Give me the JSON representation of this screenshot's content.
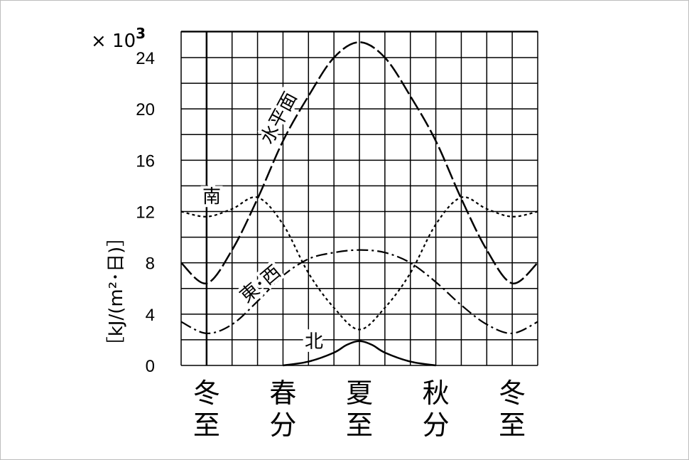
{
  "chart_data": {
    "type": "line",
    "multiplier_label": "× 10",
    "multiplier_exp": "3",
    "ylabel": "［kJ/(m²･日)］",
    "ylim": [
      0,
      24
    ],
    "yticks": [
      0,
      4,
      8,
      12,
      16,
      20,
      24
    ],
    "categories": [
      {
        "line1": "冬",
        "line2": "至",
        "x": 0
      },
      {
        "line1": "春",
        "line2": "分",
        "x": 3
      },
      {
        "line1": "夏",
        "line2": "至",
        "x": 6
      },
      {
        "line1": "秋",
        "line2": "分",
        "x": 9
      },
      {
        "line1": "冬",
        "line2": "至",
        "x": 12
      }
    ],
    "xlim": [
      -1,
      13
    ],
    "series": [
      {
        "name": "水平面",
        "x": [
          -1,
          0,
          1,
          2,
          3,
          4,
          5,
          6,
          7,
          8,
          9,
          10,
          11,
          12,
          13
        ],
        "values": [
          8,
          6.4,
          9,
          13,
          17.5,
          21,
          24,
          25.2,
          24,
          21,
          17.5,
          13,
          9,
          6.4,
          8
        ]
      },
      {
        "name": "南",
        "x": [
          -1,
          0,
          1,
          2,
          3,
          4,
          5,
          6,
          7,
          8,
          9,
          10,
          11,
          12,
          13
        ],
        "values": [
          12,
          11.6,
          12.2,
          13.1,
          11,
          7.2,
          4.5,
          2.8,
          4.5,
          7.2,
          11,
          13.1,
          12.2,
          11.6,
          12
        ]
      },
      {
        "name": "東･西",
        "x": [
          -1,
          0,
          1,
          2,
          3,
          4,
          5,
          6,
          7,
          8,
          9,
          10,
          11,
          12,
          13
        ],
        "values": [
          3.4,
          2.5,
          3.2,
          5,
          7,
          8.3,
          8.8,
          9,
          8.8,
          8,
          6.5,
          4.7,
          3.2,
          2.5,
          3.4
        ]
      },
      {
        "name": "北",
        "x": [
          3,
          4,
          5,
          5.5,
          6,
          6.5,
          7,
          8,
          9
        ],
        "values": [
          0,
          0.3,
          1.0,
          1.6,
          1.9,
          1.6,
          1.0,
          0.3,
          0
        ]
      }
    ]
  }
}
